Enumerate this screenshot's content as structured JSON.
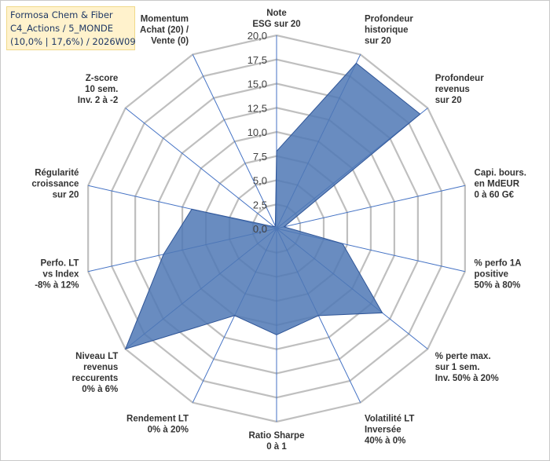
{
  "title_box": {
    "line1": "Formosa Chem & Fiber",
    "line2": "C4_Actions / 5_MONDE",
    "line3": "(10,0% | 17,6%) / 2026W09"
  },
  "colors": {
    "fill": "#4f78b5",
    "stroke": "#2f5597",
    "grid": "#bfbfbf",
    "spoke": "#4472c4",
    "title_bg": "#fff2cc"
  },
  "chart_data": {
    "type": "radar",
    "range": [
      0,
      20
    ],
    "ticks": [
      "0,0",
      "2,5",
      "5,0",
      "7,5",
      "10,0",
      "12,5",
      "15,0",
      "17,5",
      "20,0"
    ],
    "grid": true,
    "axes": [
      {
        "lines": [
          "Note",
          "ESG sur 20"
        ],
        "value": 8.0
      },
      {
        "lines": [
          "Profondeur",
          "historique",
          "sur 20"
        ],
        "value": 19.0
      },
      {
        "lines": [
          "Profondeur",
          "revenus",
          "sur 20"
        ],
        "value": 19.0
      },
      {
        "lines": [
          "Capi. bours.",
          "en MdEUR",
          "0 à 60 G€"
        ],
        "value": 0.8
      },
      {
        "lines": [
          "% perfo 1A",
          "positive",
          "50% à 80%"
        ],
        "value": 7.0
      },
      {
        "lines": [
          "% perte max.",
          "sur 1 sem.",
          "Inv. 50% à 20%"
        ],
        "value": 14.0
      },
      {
        "lines": [
          "Volatilité LT",
          "Inversée",
          "40% à 0%"
        ],
        "value": 10.0
      },
      {
        "lines": [
          "Ratio Sharpe",
          "0 à 1"
        ],
        "value": 11.0
      },
      {
        "lines": [
          "Rendement LT",
          "0% à 20%"
        ],
        "value": 10.0
      },
      {
        "lines": [
          "Niveau LT",
          "revenus",
          "reccurents",
          "0% à 6%"
        ],
        "value": 20.0
      },
      {
        "lines": [
          "Perfo. LT",
          "vs Index",
          "-8% à 12%"
        ],
        "value": 12.0
      },
      {
        "lines": [
          "Régularité",
          "croissance",
          "sur 20"
        ],
        "value": 9.0
      },
      {
        "lines": [
          "Z-score",
          "10 sem.",
          "Inv. 2 à -2"
        ],
        "value": 0.3
      },
      {
        "lines": [
          "Momentum",
          "Achat (20) /",
          "Vente (0)"
        ],
        "value": 0.3
      }
    ]
  }
}
